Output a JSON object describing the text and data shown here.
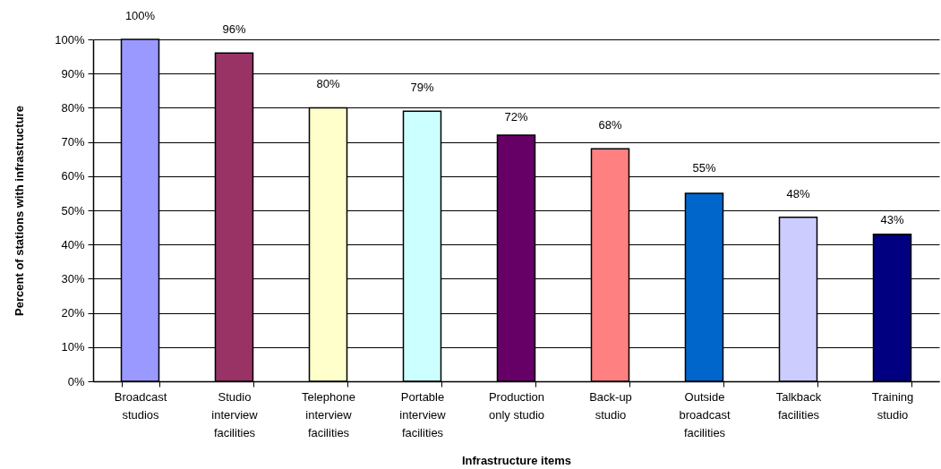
{
  "chart_data": {
    "type": "bar",
    "xlabel": "Infrastructure items",
    "ylabel": "Percent of stations  with infrastructure",
    "categories": [
      "Broadcast studios",
      "Studio interview facilities",
      "Telephone interview facilities",
      "Portable interview facilities",
      "Production only studio",
      "Back-up studio",
      "Outside broadcast facilities",
      "Talkback facilities",
      "Training studio"
    ],
    "values": [
      100,
      96,
      80,
      79,
      72,
      68,
      55,
      48,
      43
    ],
    "colors": [
      "#9999ff",
      "#993366",
      "#ffffcc",
      "#ccffff",
      "#660066",
      "#ff8080",
      "#0066cc",
      "#ccccff",
      "#000080"
    ],
    "value_labels": [
      "100%",
      "96%",
      "80%",
      "79%",
      "72%",
      "68%",
      "55%",
      "48%",
      "43%"
    ],
    "ylim": [
      0,
      100
    ],
    "yticks": [
      {
        "value": 0,
        "label": "0%"
      },
      {
        "value": 10,
        "label": "10%"
      },
      {
        "value": 20,
        "label": "20%"
      },
      {
        "value": 30,
        "label": "30%"
      },
      {
        "value": 40,
        "label": "40%"
      },
      {
        "value": 50,
        "label": "50%"
      },
      {
        "value": 60,
        "label": "60%"
      },
      {
        "value": 70,
        "label": "70%"
      },
      {
        "value": 80,
        "label": "80%"
      },
      {
        "value": 90,
        "label": "90%"
      },
      {
        "value": 100,
        "label": "100%"
      }
    ],
    "grid": "y"
  }
}
